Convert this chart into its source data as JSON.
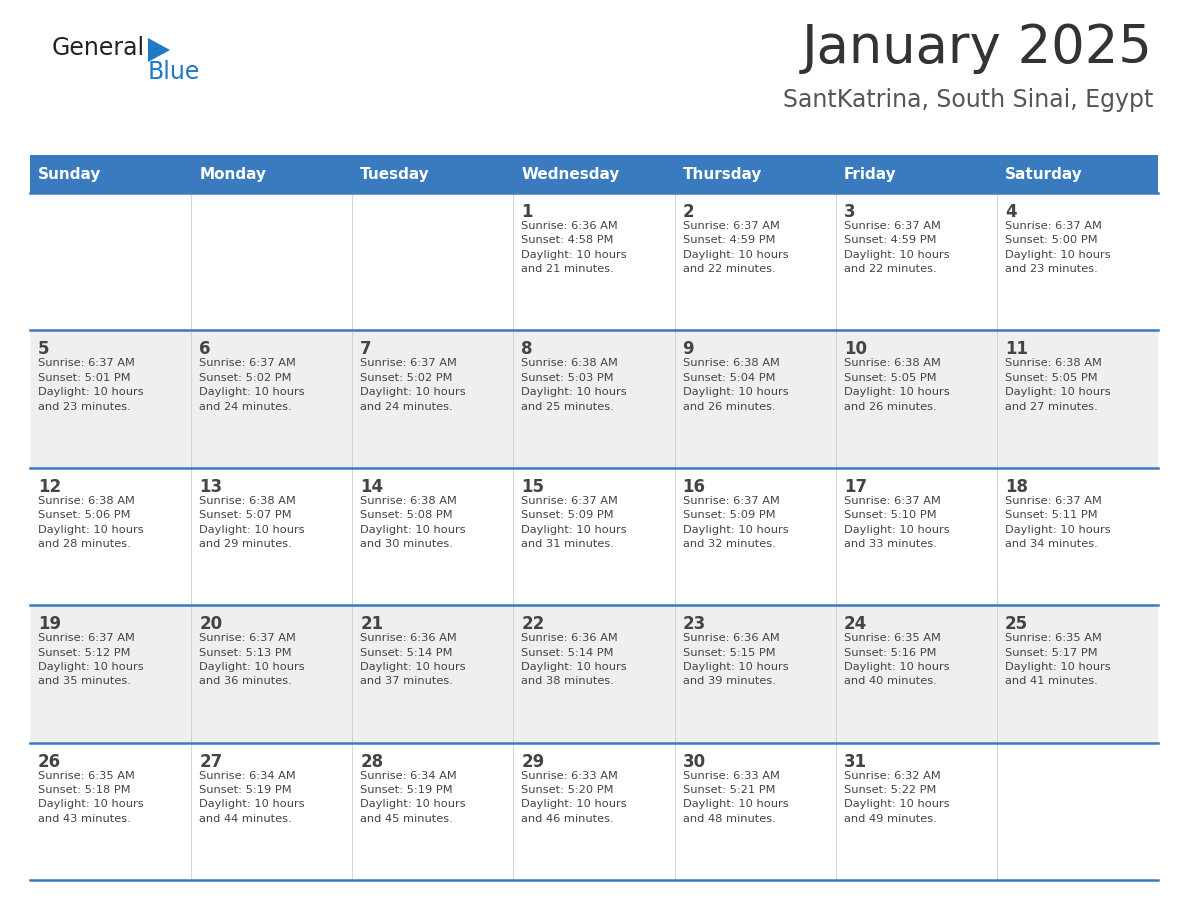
{
  "title": "January 2025",
  "subtitle": "SantKatrina, South Sinai, Egypt",
  "days_of_week": [
    "Sunday",
    "Monday",
    "Tuesday",
    "Wednesday",
    "Thursday",
    "Friday",
    "Saturday"
  ],
  "header_bg": "#3a7bbf",
  "header_text": "#ffffff",
  "row_bg_even": "#ffffff",
  "row_bg_odd": "#efefef",
  "separator_color": "#3a7bbf",
  "day_number_color": "#444444",
  "cell_text_color": "#444444",
  "title_color": "#333333",
  "subtitle_color": "#555555",
  "logo_general_color": "#222222",
  "logo_blue_color": "#2178c4",
  "calendar": [
    [
      {
        "day": null,
        "info": ""
      },
      {
        "day": null,
        "info": ""
      },
      {
        "day": null,
        "info": ""
      },
      {
        "day": 1,
        "info": "Sunrise: 6:36 AM\nSunset: 4:58 PM\nDaylight: 10 hours\nand 21 minutes."
      },
      {
        "day": 2,
        "info": "Sunrise: 6:37 AM\nSunset: 4:59 PM\nDaylight: 10 hours\nand 22 minutes."
      },
      {
        "day": 3,
        "info": "Sunrise: 6:37 AM\nSunset: 4:59 PM\nDaylight: 10 hours\nand 22 minutes."
      },
      {
        "day": 4,
        "info": "Sunrise: 6:37 AM\nSunset: 5:00 PM\nDaylight: 10 hours\nand 23 minutes."
      }
    ],
    [
      {
        "day": 5,
        "info": "Sunrise: 6:37 AM\nSunset: 5:01 PM\nDaylight: 10 hours\nand 23 minutes."
      },
      {
        "day": 6,
        "info": "Sunrise: 6:37 AM\nSunset: 5:02 PM\nDaylight: 10 hours\nand 24 minutes."
      },
      {
        "day": 7,
        "info": "Sunrise: 6:37 AM\nSunset: 5:02 PM\nDaylight: 10 hours\nand 24 minutes."
      },
      {
        "day": 8,
        "info": "Sunrise: 6:38 AM\nSunset: 5:03 PM\nDaylight: 10 hours\nand 25 minutes."
      },
      {
        "day": 9,
        "info": "Sunrise: 6:38 AM\nSunset: 5:04 PM\nDaylight: 10 hours\nand 26 minutes."
      },
      {
        "day": 10,
        "info": "Sunrise: 6:38 AM\nSunset: 5:05 PM\nDaylight: 10 hours\nand 26 minutes."
      },
      {
        "day": 11,
        "info": "Sunrise: 6:38 AM\nSunset: 5:05 PM\nDaylight: 10 hours\nand 27 minutes."
      }
    ],
    [
      {
        "day": 12,
        "info": "Sunrise: 6:38 AM\nSunset: 5:06 PM\nDaylight: 10 hours\nand 28 minutes."
      },
      {
        "day": 13,
        "info": "Sunrise: 6:38 AM\nSunset: 5:07 PM\nDaylight: 10 hours\nand 29 minutes."
      },
      {
        "day": 14,
        "info": "Sunrise: 6:38 AM\nSunset: 5:08 PM\nDaylight: 10 hours\nand 30 minutes."
      },
      {
        "day": 15,
        "info": "Sunrise: 6:37 AM\nSunset: 5:09 PM\nDaylight: 10 hours\nand 31 minutes."
      },
      {
        "day": 16,
        "info": "Sunrise: 6:37 AM\nSunset: 5:09 PM\nDaylight: 10 hours\nand 32 minutes."
      },
      {
        "day": 17,
        "info": "Sunrise: 6:37 AM\nSunset: 5:10 PM\nDaylight: 10 hours\nand 33 minutes."
      },
      {
        "day": 18,
        "info": "Sunrise: 6:37 AM\nSunset: 5:11 PM\nDaylight: 10 hours\nand 34 minutes."
      }
    ],
    [
      {
        "day": 19,
        "info": "Sunrise: 6:37 AM\nSunset: 5:12 PM\nDaylight: 10 hours\nand 35 minutes."
      },
      {
        "day": 20,
        "info": "Sunrise: 6:37 AM\nSunset: 5:13 PM\nDaylight: 10 hours\nand 36 minutes."
      },
      {
        "day": 21,
        "info": "Sunrise: 6:36 AM\nSunset: 5:14 PM\nDaylight: 10 hours\nand 37 minutes."
      },
      {
        "day": 22,
        "info": "Sunrise: 6:36 AM\nSunset: 5:14 PM\nDaylight: 10 hours\nand 38 minutes."
      },
      {
        "day": 23,
        "info": "Sunrise: 6:36 AM\nSunset: 5:15 PM\nDaylight: 10 hours\nand 39 minutes."
      },
      {
        "day": 24,
        "info": "Sunrise: 6:35 AM\nSunset: 5:16 PM\nDaylight: 10 hours\nand 40 minutes."
      },
      {
        "day": 25,
        "info": "Sunrise: 6:35 AM\nSunset: 5:17 PM\nDaylight: 10 hours\nand 41 minutes."
      }
    ],
    [
      {
        "day": 26,
        "info": "Sunrise: 6:35 AM\nSunset: 5:18 PM\nDaylight: 10 hours\nand 43 minutes."
      },
      {
        "day": 27,
        "info": "Sunrise: 6:34 AM\nSunset: 5:19 PM\nDaylight: 10 hours\nand 44 minutes."
      },
      {
        "day": 28,
        "info": "Sunrise: 6:34 AM\nSunset: 5:19 PM\nDaylight: 10 hours\nand 45 minutes."
      },
      {
        "day": 29,
        "info": "Sunrise: 6:33 AM\nSunset: 5:20 PM\nDaylight: 10 hours\nand 46 minutes."
      },
      {
        "day": 30,
        "info": "Sunrise: 6:33 AM\nSunset: 5:21 PM\nDaylight: 10 hours\nand 48 minutes."
      },
      {
        "day": 31,
        "info": "Sunrise: 6:32 AM\nSunset: 5:22 PM\nDaylight: 10 hours\nand 49 minutes."
      },
      {
        "day": null,
        "info": ""
      }
    ]
  ]
}
